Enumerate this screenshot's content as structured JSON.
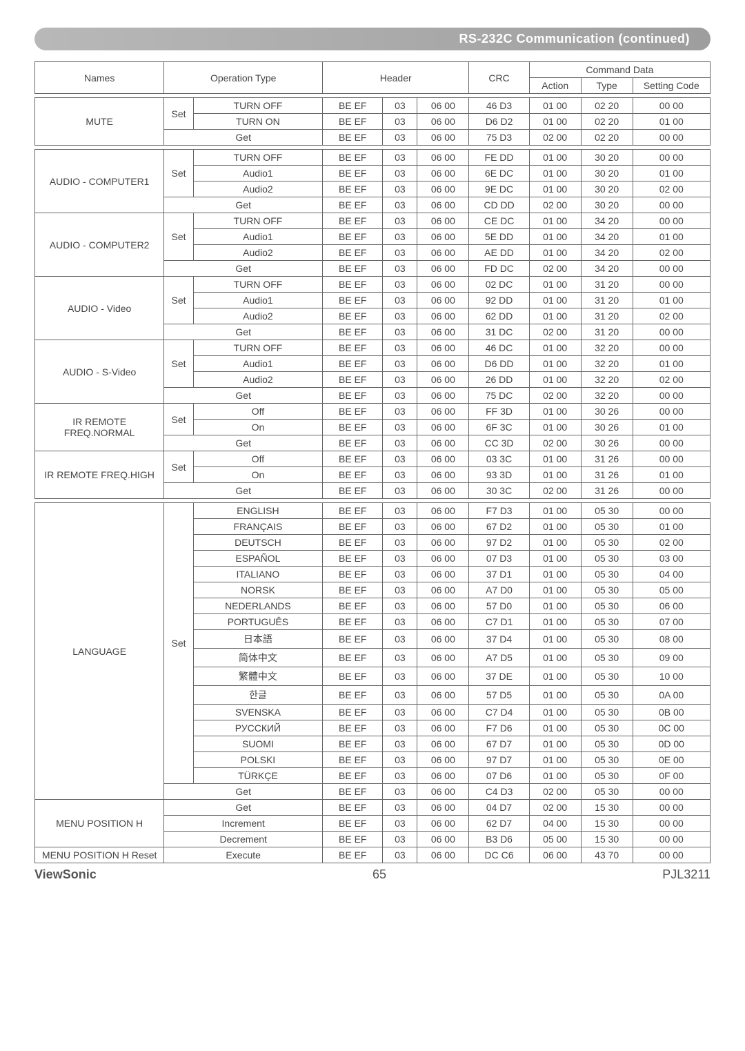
{
  "banner": "RS-232C Communication (continued)",
  "columns": {
    "names": "Names",
    "operation_type": "Operation Type",
    "header": "Header",
    "crc": "CRC",
    "command_data": "Command Data",
    "action": "Action",
    "type": "Type",
    "setting_code": "Setting Code"
  },
  "groups": [
    {
      "name": "MUTE",
      "set_label": "Set",
      "set_rows": 2,
      "rows": [
        {
          "op": "TURN OFF",
          "h1": "BE  EF",
          "h2": "03",
          "h3": "06  00",
          "crc": "46  D3",
          "ac": "01  00",
          "ty": "02  20",
          "sc": "00  00"
        },
        {
          "op": "TURN ON",
          "h1": "BE  EF",
          "h2": "03",
          "h3": "06  00",
          "crc": "D6  D2",
          "ac": "01  00",
          "ty": "02  20",
          "sc": "01  00"
        },
        {
          "op": "Get",
          "h1": "BE  EF",
          "h2": "03",
          "h3": "06  00",
          "crc": "75  D3",
          "ac": "02  00",
          "ty": "02  20",
          "sc": "00  00"
        }
      ],
      "sep_after": true
    },
    {
      "name": "AUDIO - COMPUTER1",
      "set_label": "Set",
      "set_rows": 3,
      "rows": [
        {
          "op": "TURN OFF",
          "h1": "BE  EF",
          "h2": "03",
          "h3": "06  00",
          "crc": "FE  DD",
          "ac": "01  00",
          "ty": "30 20",
          "sc": "00 00"
        },
        {
          "op": "Audio1",
          "h1": "BE  EF",
          "h2": "03",
          "h3": "06  00",
          "crc": "6E  DC",
          "ac": "01  00",
          "ty": "30 20",
          "sc": "01 00"
        },
        {
          "op": "Audio2",
          "h1": "BE  EF",
          "h2": "03",
          "h3": "06  00",
          "crc": "9E  DC",
          "ac": "01  00",
          "ty": "30 20",
          "sc": "02 00"
        },
        {
          "op": "Get",
          "h1": "BE  EF",
          "h2": "03",
          "h3": "06  00",
          "crc": "CD  DD",
          "ac": "02  00",
          "ty": "30 20",
          "sc": "00 00"
        }
      ]
    },
    {
      "name": "AUDIO - COMPUTER2",
      "set_label": "Set",
      "set_rows": 3,
      "rows": [
        {
          "op": "TURN OFF",
          "h1": "BE  EF",
          "h2": "03",
          "h3": "06  00",
          "crc": "CE  DC",
          "ac": "01  00",
          "ty": "34 20",
          "sc": "00 00"
        },
        {
          "op": "Audio1",
          "h1": "BE  EF",
          "h2": "03",
          "h3": "06  00",
          "crc": "5E  DD",
          "ac": "01  00",
          "ty": "34 20",
          "sc": "01 00"
        },
        {
          "op": "Audio2",
          "h1": "BE  EF",
          "h2": "03",
          "h3": "06  00",
          "crc": "AE  DD",
          "ac": "01  00",
          "ty": "34 20",
          "sc": "02 00"
        },
        {
          "op": "Get",
          "h1": "BE  EF",
          "h2": "03",
          "h3": "06  00",
          "crc": "FD  DC",
          "ac": "02  00",
          "ty": "34 20",
          "sc": "00 00"
        }
      ]
    },
    {
      "name": "AUDIO - Video",
      "set_label": "Set",
      "set_rows": 3,
      "rows": [
        {
          "op": "TURN OFF",
          "h1": "BE  EF",
          "h2": "03",
          "h3": "06  00",
          "crc": "02  DC",
          "ac": "01  00",
          "ty": "31 20",
          "sc": "00 00"
        },
        {
          "op": "Audio1",
          "h1": "BE  EF",
          "h2": "03",
          "h3": "06  00",
          "crc": "92  DD",
          "ac": "01  00",
          "ty": "31 20",
          "sc": "01 00"
        },
        {
          "op": "Audio2",
          "h1": "BE  EF",
          "h2": "03",
          "h3": "06  00",
          "crc": "62  DD",
          "ac": "01  00",
          "ty": "31 20",
          "sc": "02 00"
        },
        {
          "op": "Get",
          "h1": "BE  EF",
          "h2": "03",
          "h3": "06  00",
          "crc": "31  DC",
          "ac": "02  00",
          "ty": "31 20",
          "sc": "00 00"
        }
      ]
    },
    {
      "name": "AUDIO - S-Video",
      "set_label": "Set",
      "set_rows": 3,
      "rows": [
        {
          "op": "TURN OFF",
          "h1": "BE  EF",
          "h2": "03",
          "h3": "06  00",
          "crc": "46  DC",
          "ac": "01  00",
          "ty": "32 20",
          "sc": "00 00"
        },
        {
          "op": "Audio1",
          "h1": "BE  EF",
          "h2": "03",
          "h3": "06  00",
          "crc": "D6  DD",
          "ac": "01  00",
          "ty": "32 20",
          "sc": "01 00"
        },
        {
          "op": "Audio2",
          "h1": "BE  EF",
          "h2": "03",
          "h3": "06  00",
          "crc": "26  DD",
          "ac": "01  00",
          "ty": "32 20",
          "sc": "02 00"
        },
        {
          "op": "Get",
          "h1": "BE  EF",
          "h2": "03",
          "h3": "06  00",
          "crc": "75  DC",
          "ac": "02  00",
          "ty": "32 20",
          "sc": "00 00"
        }
      ]
    },
    {
      "name": "IR REMOTE FREQ.NORMAL",
      "set_label": "Set",
      "set_rows": 2,
      "rows": [
        {
          "op": "Off",
          "h1": "BE  EF",
          "h2": "03",
          "h3": "06  00",
          "crc": "FF  3D",
          "ac": "01  00",
          "ty": "30 26",
          "sc": "00 00"
        },
        {
          "op": "On",
          "h1": "BE  EF",
          "h2": "03",
          "h3": "06  00",
          "crc": "6F  3C",
          "ac": "01  00",
          "ty": "30 26",
          "sc": "01 00"
        },
        {
          "op": "Get",
          "h1": "BE  EF",
          "h2": "03",
          "h3": "06  00",
          "crc": "CC  3D",
          "ac": "02  00",
          "ty": "30 26",
          "sc": "00 00"
        }
      ]
    },
    {
      "name": "IR REMOTE FREQ.HIGH",
      "set_label": "Set",
      "set_rows": 2,
      "rows": [
        {
          "op": "Off",
          "h1": "BE  EF",
          "h2": "03",
          "h3": "06  00",
          "crc": "03  3C",
          "ac": "01  00",
          "ty": "31 26",
          "sc": "00 00"
        },
        {
          "op": "On",
          "h1": "BE  EF",
          "h2": "03",
          "h3": "06  00",
          "crc": "93  3D",
          "ac": "01  00",
          "ty": "31 26",
          "sc": "01 00"
        },
        {
          "op": "Get",
          "h1": "BE  EF",
          "h2": "03",
          "h3": "06  00",
          "crc": "30  3C",
          "ac": "02  00",
          "ty": "31 26",
          "sc": "00 00"
        }
      ],
      "sep_after": true
    },
    {
      "name": "LANGUAGE",
      "set_label": "Set",
      "set_rows": 17,
      "rows": [
        {
          "op": "ENGLISH",
          "h1": "BE  EF",
          "h2": "03",
          "h3": "06  00",
          "crc": "F7  D3",
          "ac": "01  00",
          "ty": "05  30",
          "sc": "00  00"
        },
        {
          "op": "FRANÇAIS",
          "h1": "BE  EF",
          "h2": "03",
          "h3": "06  00",
          "crc": "67  D2",
          "ac": "01  00",
          "ty": "05  30",
          "sc": "01  00"
        },
        {
          "op": "DEUTSCH",
          "h1": "BE  EF",
          "h2": "03",
          "h3": "06  00",
          "crc": "97  D2",
          "ac": "01  00",
          "ty": "05  30",
          "sc": "02  00"
        },
        {
          "op": "ESPAÑOL",
          "h1": "BE  EF",
          "h2": "03",
          "h3": "06  00",
          "crc": "07  D3",
          "ac": "01  00",
          "ty": "05  30",
          "sc": "03  00"
        },
        {
          "op": "ITALIANO",
          "h1": "BE  EF",
          "h2": "03",
          "h3": "06  00",
          "crc": "37  D1",
          "ac": "01  00",
          "ty": "05  30",
          "sc": "04  00"
        },
        {
          "op": "NORSK",
          "h1": "BE  EF",
          "h2": "03",
          "h3": "06  00",
          "crc": "A7  D0",
          "ac": "01  00",
          "ty": "05  30",
          "sc": "05  00"
        },
        {
          "op": "NEDERLANDS",
          "h1": "BE  EF",
          "h2": "03",
          "h3": "06  00",
          "crc": "57  D0",
          "ac": "01  00",
          "ty": "05  30",
          "sc": "06  00"
        },
        {
          "op": "PORTUGUÊS",
          "h1": "BE  EF",
          "h2": "03",
          "h3": "06  00",
          "crc": "C7  D1",
          "ac": "01  00",
          "ty": "05  30",
          "sc": "07  00"
        },
        {
          "op": "日本語",
          "h1": "BE  EF",
          "h2": "03",
          "h3": "06  00",
          "crc": "37  D4",
          "ac": "01  00",
          "ty": "05  30",
          "sc": "08  00"
        },
        {
          "op": "简体中文",
          "h1": "BE  EF",
          "h2": "03",
          "h3": "06  00",
          "crc": "A7  D5",
          "ac": "01  00",
          "ty": "05  30",
          "sc": "09  00"
        },
        {
          "op": "繁體中文",
          "h1": "BE  EF",
          "h2": "03",
          "h3": "06  00",
          "crc": "37  DE",
          "ac": "01  00",
          "ty": "05  30",
          "sc": "10  00"
        },
        {
          "op": "한글",
          "h1": "BE  EF",
          "h2": "03",
          "h3": "06  00",
          "crc": "57  D5",
          "ac": "01  00",
          "ty": "05  30",
          "sc": "0A  00"
        },
        {
          "op": "SVENSKA",
          "h1": "BE  EF",
          "h2": "03",
          "h3": "06  00",
          "crc": "C7  D4",
          "ac": "01  00",
          "ty": "05  30",
          "sc": "0B  00"
        },
        {
          "op": "РУССКИЙ",
          "h1": "BE  EF",
          "h2": "03",
          "h3": "06  00",
          "crc": "F7  D6",
          "ac": "01  00",
          "ty": "05  30",
          "sc": "0C  00"
        },
        {
          "op": "SUOMI",
          "h1": "BE  EF",
          "h2": "03",
          "h3": "06  00",
          "crc": "67  D7",
          "ac": "01  00",
          "ty": "05  30",
          "sc": "0D  00"
        },
        {
          "op": "POLSKI",
          "h1": "BE  EF",
          "h2": "03",
          "h3": "06  00",
          "crc": "97  D7",
          "ac": "01  00",
          "ty": "05  30",
          "sc": "0E  00"
        },
        {
          "op": "TÜRKÇE",
          "h1": "BE  EF",
          "h2": "03",
          "h3": "06  00",
          "crc": "07  D6",
          "ac": "01  00",
          "ty": "05  30",
          "sc": "0F  00"
        },
        {
          "op": "Get",
          "h1": "BE  EF",
          "h2": "03",
          "h3": "06  00",
          "crc": "C4  D3",
          "ac": "02  00",
          "ty": "05  30",
          "sc": "00  00"
        }
      ]
    },
    {
      "name": "MENU POSITION H",
      "set_label": "",
      "set_rows": 0,
      "rows": [
        {
          "op": "Get",
          "h1": "BE  EF",
          "h2": "03",
          "h3": "06  00",
          "crc": "04  D7",
          "ac": "02  00",
          "ty": "15  30",
          "sc": "00  00"
        },
        {
          "op": "Increment",
          "h1": "BE  EF",
          "h2": "03",
          "h3": "06  00",
          "crc": "62  D7",
          "ac": "04  00",
          "ty": "15  30",
          "sc": "00  00"
        },
        {
          "op": "Decrement",
          "h1": "BE  EF",
          "h2": "03",
          "h3": "06  00",
          "crc": "B3  D6",
          "ac": "05  00",
          "ty": "15  30",
          "sc": "00  00"
        }
      ]
    },
    {
      "name": "MENU POSITION H Reset",
      "set_label": "",
      "set_rows": 0,
      "rows": [
        {
          "op": "Execute",
          "h1": "BE  EF",
          "h2": "03",
          "h3": "06  00",
          "crc": "DC  C6",
          "ac": "06  00",
          "ty": "43  70",
          "sc": "00  00"
        }
      ]
    }
  ],
  "footer": {
    "brand": "ViewSonic",
    "page": "65",
    "model": "PJL3211"
  }
}
